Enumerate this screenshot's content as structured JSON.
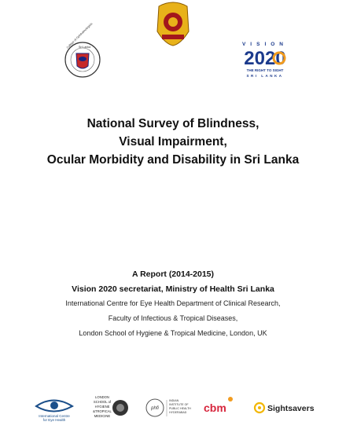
{
  "header": {
    "college_logo": [
      "College of Ophthalmologists",
      "Sri Lanka"
    ],
    "vision_logo": {
      "word": "VISION",
      "year": "2020",
      "tagline": "THE RIGHT TO SIGHT",
      "country": "SRI LANKA"
    }
  },
  "title": [
    "National Survey of Blindness,",
    "Visual Impairment,",
    "Ocular Morbidity and Disability in Sri Lanka"
  ],
  "report": {
    "label": "A Report (2014-2015)",
    "secretariat": "Vision 2020 secretariat, Ministry of Health Sri Lanka",
    "affiliations": [
      "International Centre for Eye Health Department of Clinical Research,",
      "Faculty of Infectious & Tropical Diseases,",
      "London School of Hygiene & Tropical Medicine, London, UK"
    ]
  },
  "partners": {
    "iceh": [
      "International Centre",
      "for Eye Health"
    ],
    "lshtm": [
      "LONDON",
      "SCHOOL of",
      "HYGIENE",
      "&TROPICAL",
      "MEDICINE"
    ],
    "phfi": {
      "mark": "phfi",
      "name": [
        "INDIAN",
        "INSTITUTE OF",
        "PUBLIC HEALTH",
        "HYDERABAD"
      ]
    },
    "cbm": "cbm",
    "sightsavers": "Sightsavers"
  }
}
